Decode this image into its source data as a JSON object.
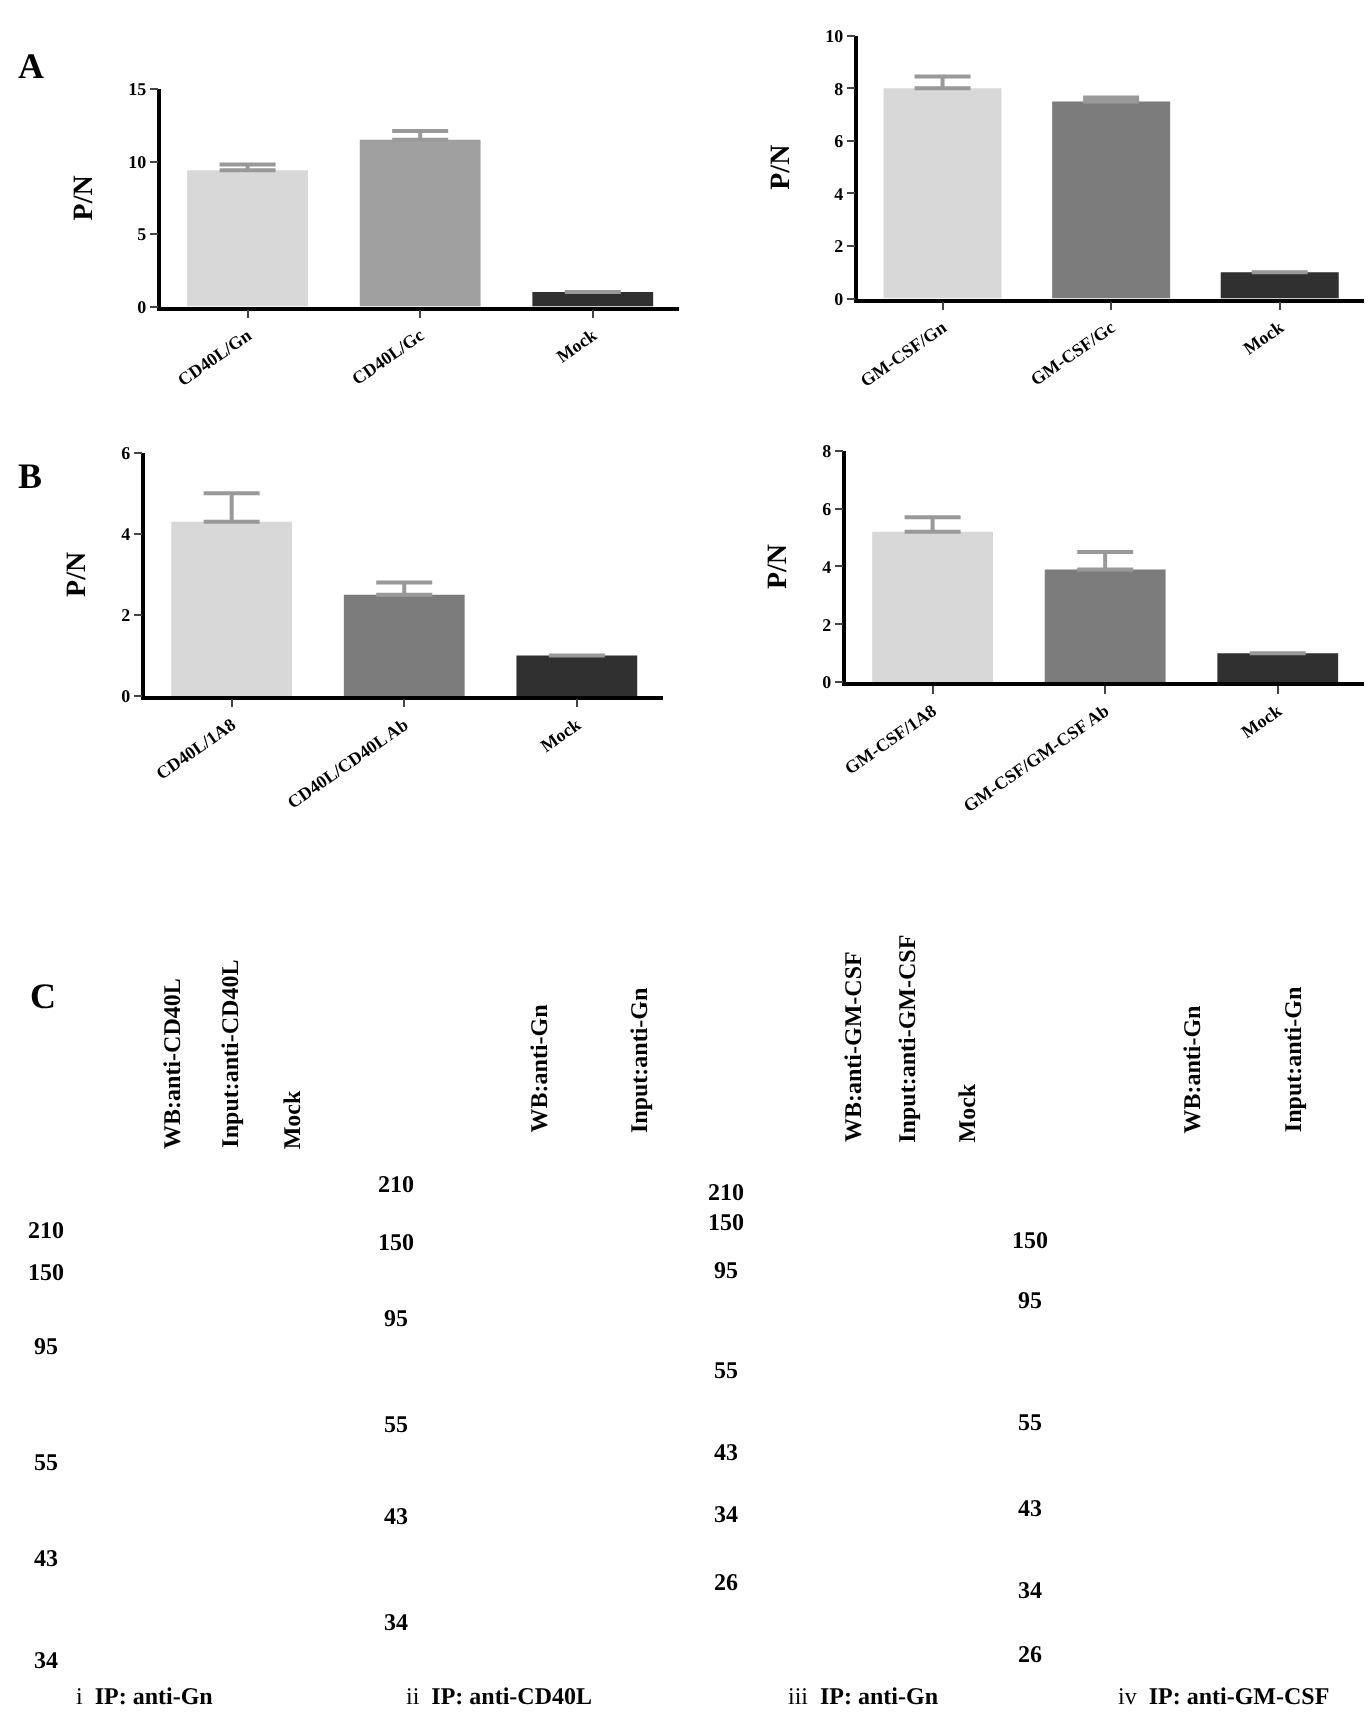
{
  "chart_data": [
    {
      "type": "bar",
      "title": "A",
      "ylabel": "P/N",
      "categories": [
        "CD40L/Gn",
        "CD40L/Gc",
        "Mock"
      ],
      "values": [
        9.4,
        11.5,
        1.0
      ],
      "colors": [
        "#d8d8d8",
        "#a0a0a0",
        "#303030"
      ],
      "errors": [
        [
          9.4,
          9.8
        ],
        [
          11.5,
          12.1
        ],
        null
      ],
      "ylim": [
        0,
        15
      ],
      "yticks": [
        0,
        5,
        10,
        15
      ]
    },
    {
      "type": "bar",
      "ylabel": "P/N",
      "categories": [
        "GM-CSF/Gn",
        "GM-CSF/Gc",
        "Mock"
      ],
      "values": [
        8.0,
        7.5,
        1.0
      ],
      "colors": [
        "#d8d8d8",
        "#7c7c7c",
        "#303030"
      ],
      "errors": [
        [
          8.0,
          8.45
        ],
        [
          7.5,
          7.65
        ],
        null
      ],
      "ylim": [
        0,
        10
      ],
      "yticks": [
        0,
        2,
        4,
        6,
        8,
        10
      ]
    },
    {
      "type": "bar",
      "title": "B",
      "ylabel": "P/N",
      "categories": [
        "CD40L/1A8",
        "CD40L/CD40L Ab",
        "Mock"
      ],
      "values": [
        4.3,
        2.5,
        1.0
      ],
      "colors": [
        "#d8d8d8",
        "#7c7c7c",
        "#303030"
      ],
      "errors": [
        [
          4.3,
          5.0
        ],
        [
          2.5,
          2.8
        ],
        null
      ],
      "ylim": [
        0,
        6
      ],
      "yticks": [
        0,
        2,
        4,
        6
      ]
    },
    {
      "type": "bar",
      "ylabel": "P/N",
      "categories": [
        "GM-CSF/1A8",
        "GM-CSF/GM-CSF Ab",
        "Mock"
      ],
      "values": [
        5.2,
        3.9,
        1.0
      ],
      "colors": [
        "#d8d8d8",
        "#7c7c7c",
        "#303030"
      ],
      "errors": [
        [
          5.2,
          5.7
        ],
        [
          3.9,
          4.5
        ],
        null
      ],
      "ylim": [
        0,
        8
      ],
      "yticks": [
        0,
        2,
        4,
        6,
        8
      ]
    },
    {
      "type": "other",
      "title": "C",
      "annotations": [
        "WB:anti-CD40L",
        "Input:anti-CD40L",
        "Mock",
        "WB:anti-Gn",
        "Input:anti-Gn",
        "WB:anti-GM-CSF",
        "Input:anti-GM-CSF",
        "Mock",
        "WB:anti-Gn",
        "Input:anti-Gn",
        "210",
        "150",
        "95",
        "55",
        "43",
        "34",
        "210",
        "150",
        "95",
        "55",
        "43",
        "34",
        "210",
        "150",
        "95",
        "55",
        "43",
        "34",
        "26",
        "150",
        "95",
        "55",
        "43",
        "34",
        "26",
        "i  IP: anti-Gn",
        "ii  IP: anti-CD40L",
        "iii  IP: anti-Gn",
        "iv  IP: anti-GM-CSF"
      ]
    }
  ]
}
